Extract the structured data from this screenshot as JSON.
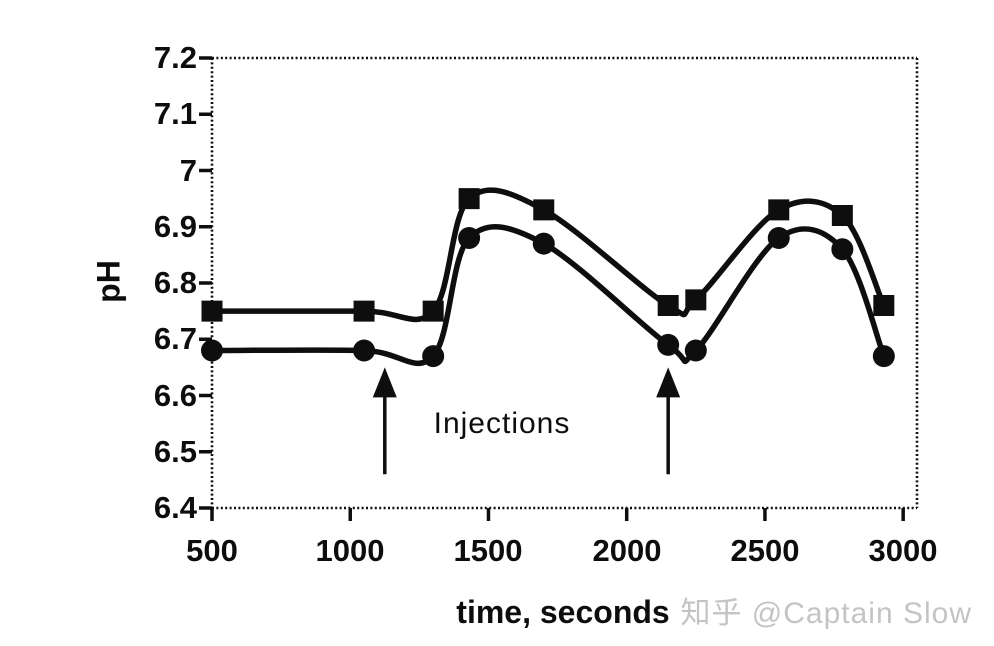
{
  "watermark": {
    "text": "知乎 @Captain Slow",
    "color": "#c4c4c4"
  },
  "chart_data": {
    "type": "line",
    "title": "",
    "xlabel": "time, seconds",
    "ylabel": "pH",
    "xlim": [
      500,
      3050
    ],
    "ylim": [
      6.4,
      7.2
    ],
    "x_ticks": [
      500,
      1000,
      1500,
      2000,
      2500,
      3000
    ],
    "y_ticks": [
      "7.2",
      "7.1",
      "7",
      "6.9",
      "6.8",
      "6.7",
      "6.6",
      "6.5",
      "6.4"
    ],
    "grid": false,
    "legend_position": "none",
    "line_color": "#0e0e0e",
    "smooth_lines": true,
    "series": [
      {
        "name": "upper-series-squares",
        "marker": "square",
        "points": [
          [
            500,
            6.75
          ],
          [
            1050,
            6.75
          ],
          [
            1300,
            6.75
          ],
          [
            1430,
            6.95
          ],
          [
            1700,
            6.93
          ],
          [
            2150,
            6.76
          ],
          [
            2250,
            6.77
          ],
          [
            2550,
            6.93
          ],
          [
            2780,
            6.92
          ],
          [
            2930,
            6.76
          ]
        ]
      },
      {
        "name": "lower-series-circles",
        "marker": "circle",
        "points": [
          [
            500,
            6.68
          ],
          [
            1050,
            6.68
          ],
          [
            1300,
            6.67
          ],
          [
            1430,
            6.88
          ],
          [
            1700,
            6.87
          ],
          [
            2150,
            6.69
          ],
          [
            2250,
            6.68
          ],
          [
            2550,
            6.88
          ],
          [
            2780,
            6.86
          ],
          [
            2930,
            6.67
          ]
        ]
      }
    ],
    "annotation": {
      "label": "Injections",
      "label_pos": {
        "x": 1550,
        "pH": 6.55
      },
      "arrows": [
        {
          "x": 1125,
          "pH_tail": 6.46,
          "pH_tip": 6.65
        },
        {
          "x": 2150,
          "pH_tail": 6.46,
          "pH_tip": 6.65
        }
      ]
    }
  }
}
